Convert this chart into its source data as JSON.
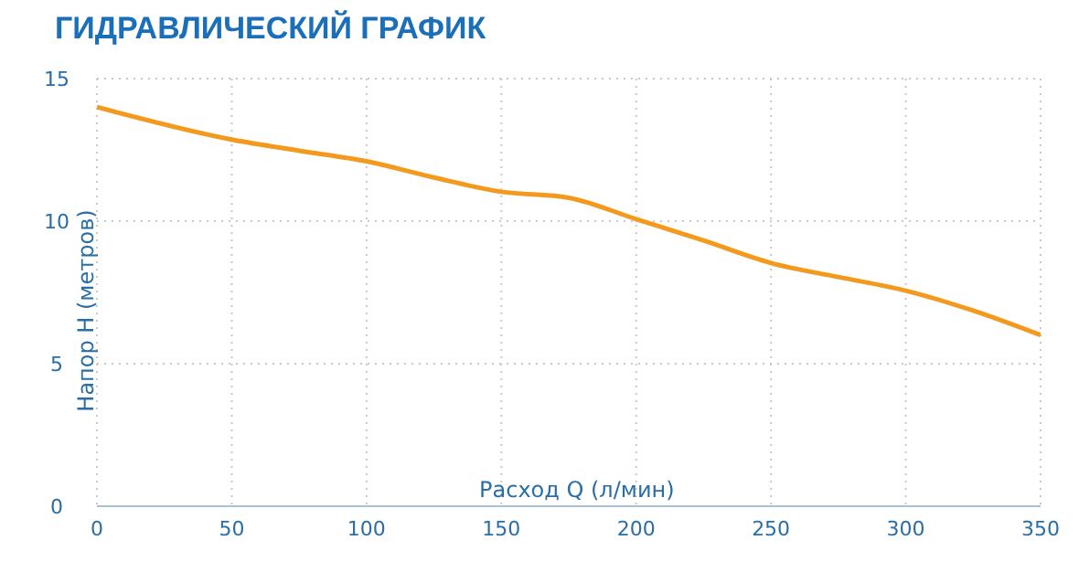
{
  "chart_data": {
    "type": "line",
    "title": "ГИДРАВЛИЧЕСКИЙ ГРАФИК",
    "xlabel": "Расход Q (л/мин)",
    "ylabel": "Напор H (метров)",
    "x": [
      0,
      50,
      75,
      100,
      125,
      150,
      175,
      200,
      225,
      250,
      275,
      300,
      325,
      350
    ],
    "series": [
      {
        "color": "#f39a1e",
        "values": [
          14.0,
          12.86,
          12.47,
          12.1,
          11.53,
          11.03,
          10.82,
          10.07,
          9.32,
          8.53,
          8.04,
          7.56,
          6.86,
          6.0
        ]
      }
    ],
    "xlim": [
      0,
      350
    ],
    "xticks": [
      0,
      50,
      100,
      150,
      200,
      250,
      300,
      350
    ],
    "ylim": [
      0,
      15
    ],
    "yticks": [
      0,
      5,
      10,
      15
    ],
    "grid": true,
    "marker": "none",
    "line_style": "solid"
  }
}
